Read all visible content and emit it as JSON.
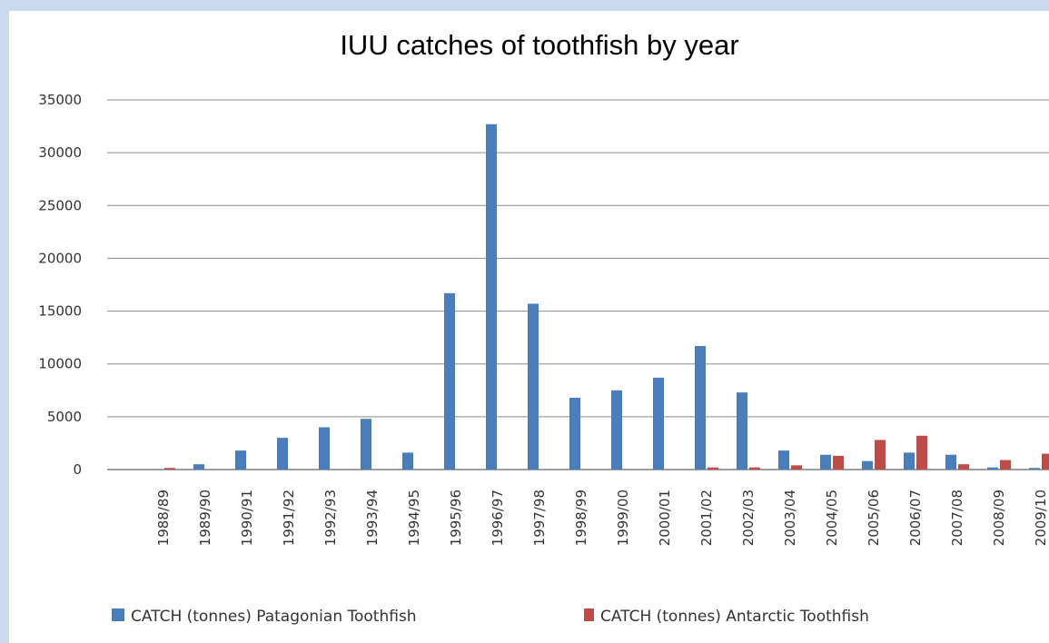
{
  "chart_data": {
    "type": "bar",
    "title": "IUU catches of toothfish by year",
    "xlabel": "",
    "ylabel": "",
    "ylim": [
      0,
      35000
    ],
    "yticks": [
      0,
      5000,
      10000,
      15000,
      20000,
      25000,
      30000,
      35000
    ],
    "grid": true,
    "legend_position": "bottom",
    "categories": [
      "1988/89",
      "1989/90",
      "1990/91",
      "1991/92",
      "1992/93",
      "1993/94",
      "1994/95",
      "1995/96",
      "1996/97",
      "1997/98",
      "1998/99",
      "1999/00",
      "2000/01",
      "2001/02",
      "2002/03",
      "2003/04",
      "2004/05",
      "2005/06",
      "2006/07",
      "2007/08",
      "2008/09",
      "2009/10"
    ],
    "series": [
      {
        "name": "CATCH (tonnes) Patagonian Toothfish",
        "color": "#4a7ebb",
        "values": [
          0,
          500,
          1800,
          3000,
          4000,
          4800,
          1600,
          16700,
          32700,
          15700,
          6800,
          7500,
          8700,
          11700,
          7300,
          1800,
          1400,
          800,
          1600,
          1400,
          200,
          150
        ]
      },
      {
        "name": "CATCH (tonnes) Antarctic Toothfish",
        "color": "#be4b48",
        "values": [
          150,
          0,
          0,
          0,
          0,
          0,
          0,
          0,
          0,
          0,
          0,
          0,
          0,
          200,
          200,
          400,
          1300,
          2800,
          3200,
          500,
          900,
          1500
        ]
      }
    ]
  }
}
